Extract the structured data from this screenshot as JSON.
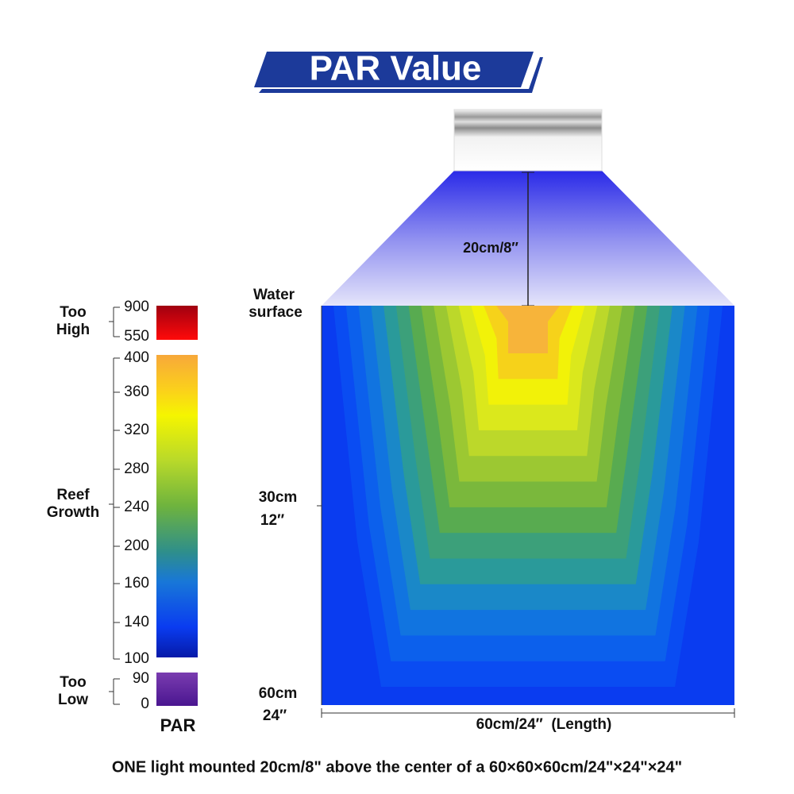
{
  "header": {
    "title": "PAR Value"
  },
  "diagram": {
    "light_height": "20cm/8″",
    "water_surface": [
      "Water",
      "surface"
    ],
    "depth_labels": [
      [
        "30cm",
        "12″"
      ],
      [
        "60cm",
        "24″"
      ]
    ],
    "length_label": "60cm/24″  (Length)"
  },
  "scale": {
    "groups": [
      {
        "label": [
          "Too",
          "High"
        ],
        "ticks": [
          900,
          550
        ]
      },
      {
        "label": [
          "Reef",
          "Growth"
        ],
        "ticks": [
          400,
          360,
          320,
          280,
          240,
          200,
          160,
          140,
          100
        ]
      },
      {
        "label": [
          "Too",
          "Low"
        ],
        "ticks": [
          90,
          0
        ]
      }
    ],
    "title": "PAR"
  },
  "footer": "ONE light mounted 20cm/8\" above the center of a 60×60×60cm/24\"×24\"×24\""
}
